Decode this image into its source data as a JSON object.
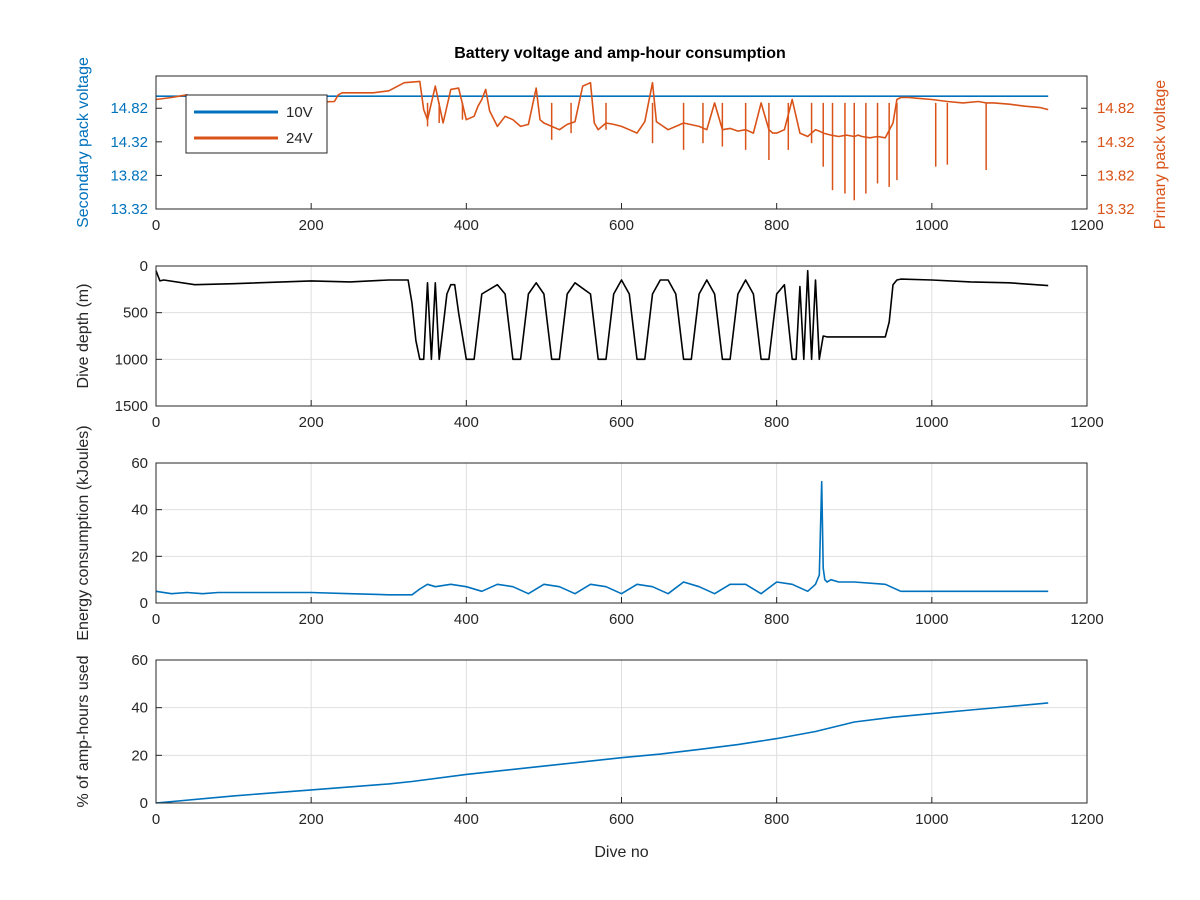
{
  "figure": {
    "title": "Battery voltage and amp-hour consumption"
  },
  "colors": {
    "blue": "#0072BD",
    "orange": "#D95319",
    "black": "#000000",
    "axis": "#262626",
    "grid": "#dfdfdf"
  },
  "chart_data": [
    {
      "type": "line",
      "title": "Battery voltage and amp-hour consumption",
      "xlabel": "",
      "ylabel": "Secondary pack voltage",
      "ylabel_right": "Primary pack voltage",
      "xlim": [
        0,
        1200
      ],
      "ylim": [
        13.32,
        15.3
      ],
      "ylim_right": [
        13.32,
        15.3
      ],
      "xticks": [
        0,
        200,
        400,
        600,
        800,
        1000,
        1200
      ],
      "yticks": [
        "13.32",
        "13.82",
        "14.32",
        "14.82"
      ],
      "yticks_right": [
        "13.32",
        "13.82",
        "14.32",
        "14.82"
      ],
      "legend": {
        "position": "top-left",
        "entries": [
          "10V",
          "24V"
        ]
      },
      "grid": false,
      "series": [
        {
          "name": "10V",
          "axis": "left",
          "x": [
            0,
            1150
          ],
          "y": [
            15.0,
            15.0
          ]
        },
        {
          "name": "24V",
          "axis": "right",
          "x": [
            0,
            20,
            40,
            60,
            80,
            100,
            140,
            180,
            230,
            235,
            240,
            280,
            300,
            320,
            340,
            345,
            350,
            360,
            370,
            380,
            390,
            400,
            410,
            415,
            420,
            425,
            430,
            440,
            450,
            460,
            470,
            480,
            490,
            495,
            500,
            510,
            520,
            530,
            540,
            550,
            560,
            565,
            570,
            580,
            590,
            600,
            610,
            620,
            630,
            640,
            645,
            650,
            660,
            680,
            700,
            710,
            720,
            730,
            740,
            750,
            760,
            770,
            780,
            790,
            795,
            800,
            810,
            820,
            830,
            840,
            850,
            855,
            860,
            870,
            880,
            890,
            900,
            905,
            910,
            920,
            930,
            940,
            950,
            955,
            960,
            970,
            980,
            1000,
            1020,
            1040,
            1060,
            1070,
            1080,
            1100,
            1120,
            1140,
            1150
          ],
          "y": [
            14.95,
            14.98,
            15.02,
            14.92,
            14.88,
            14.9,
            14.9,
            14.9,
            14.92,
            15.02,
            15.05,
            15.05,
            15.08,
            15.2,
            15.22,
            14.8,
            14.65,
            15.15,
            14.6,
            15.1,
            15.12,
            14.65,
            14.7,
            14.85,
            14.95,
            15.1,
            14.78,
            14.55,
            14.7,
            14.65,
            14.55,
            14.58,
            15.12,
            14.65,
            14.6,
            14.55,
            14.5,
            14.58,
            14.62,
            15.15,
            15.2,
            14.6,
            14.5,
            14.6,
            14.58,
            14.55,
            14.5,
            14.45,
            14.62,
            15.2,
            14.62,
            14.58,
            14.5,
            14.6,
            14.55,
            14.5,
            14.9,
            14.5,
            14.52,
            14.48,
            14.5,
            14.45,
            14.9,
            14.5,
            14.45,
            14.45,
            14.5,
            14.95,
            14.45,
            14.4,
            14.5,
            14.48,
            14.45,
            14.42,
            14.4,
            14.42,
            14.4,
            14.42,
            14.4,
            14.38,
            14.4,
            14.38,
            14.6,
            14.95,
            14.98,
            14.98,
            14.97,
            14.95,
            14.92,
            14.9,
            14.92,
            14.9,
            14.9,
            14.88,
            14.85,
            14.83,
            14.8
          ],
          "dips": [
            {
              "x": 350,
              "y": 14.55
            },
            {
              "x": 365,
              "y": 14.6
            },
            {
              "x": 395,
              "y": 14.65
            },
            {
              "x": 510,
              "y": 14.35
            },
            {
              "x": 535,
              "y": 14.45
            },
            {
              "x": 580,
              "y": 14.5
            },
            {
              "x": 640,
              "y": 14.3
            },
            {
              "x": 680,
              "y": 14.2
            },
            {
              "x": 705,
              "y": 14.3
            },
            {
              "x": 730,
              "y": 14.25
            },
            {
              "x": 760,
              "y": 14.2
            },
            {
              "x": 790,
              "y": 14.05
            },
            {
              "x": 815,
              "y": 14.2
            },
            {
              "x": 845,
              "y": 14.3
            },
            {
              "x": 860,
              "y": 13.95
            },
            {
              "x": 872,
              "y": 13.6
            },
            {
              "x": 888,
              "y": 13.55
            },
            {
              "x": 900,
              "y": 13.45
            },
            {
              "x": 915,
              "y": 13.55
            },
            {
              "x": 930,
              "y": 13.7
            },
            {
              "x": 945,
              "y": 13.65
            },
            {
              "x": 955,
              "y": 13.75
            },
            {
              "x": 1005,
              "y": 13.95
            },
            {
              "x": 1020,
              "y": 13.98
            },
            {
              "x": 1070,
              "y": 13.9
            }
          ]
        }
      ]
    },
    {
      "type": "line",
      "xlabel": "",
      "ylabel": "Dive depth (m)",
      "xlim": [
        0,
        1200
      ],
      "ylim": [
        1500,
        0
      ],
      "reversed_y": true,
      "xticks": [
        0,
        200,
        400,
        600,
        800,
        1000,
        1200
      ],
      "yticks": [
        "0",
        "500",
        "1000",
        "1500"
      ],
      "grid": true,
      "series": [
        {
          "x": [
            0,
            5,
            10,
            50,
            100,
            200,
            250,
            300,
            325,
            330,
            335,
            340,
            345,
            350,
            355,
            360,
            365,
            370,
            375,
            380,
            385,
            390,
            400,
            410,
            420,
            440,
            450,
            460,
            470,
            480,
            490,
            500,
            510,
            520,
            530,
            540,
            560,
            570,
            580,
            590,
            600,
            610,
            620,
            630,
            640,
            650,
            660,
            670,
            680,
            690,
            700,
            710,
            720,
            730,
            740,
            750,
            760,
            770,
            780,
            790,
            800,
            810,
            820,
            825,
            830,
            835,
            840,
            845,
            850,
            855,
            860,
            865,
            870,
            880,
            900,
            920,
            940,
            945,
            950,
            955,
            960,
            1000,
            1050,
            1100,
            1150
          ],
          "y": [
            50,
            160,
            150,
            200,
            190,
            160,
            170,
            150,
            150,
            400,
            800,
            1000,
            1000,
            180,
            1000,
            180,
            1000,
            650,
            300,
            200,
            200,
            500,
            1000,
            1000,
            300,
            200,
            300,
            1000,
            1000,
            300,
            180,
            300,
            1000,
            1000,
            300,
            180,
            300,
            1000,
            1000,
            300,
            150,
            300,
            1000,
            1000,
            300,
            150,
            150,
            300,
            1000,
            1000,
            300,
            150,
            300,
            1000,
            1000,
            300,
            150,
            300,
            1000,
            1000,
            300,
            200,
            1000,
            1000,
            220,
            1000,
            50,
            1000,
            150,
            1000,
            750,
            760,
            760,
            760,
            760,
            760,
            760,
            600,
            200,
            150,
            140,
            150,
            170,
            180,
            210
          ]
        }
      ]
    },
    {
      "type": "line",
      "xlabel": "",
      "ylabel": "Energy consumption (kJoules)",
      "xlim": [
        0,
        1200
      ],
      "ylim": [
        0,
        60
      ],
      "xticks": [
        0,
        200,
        400,
        600,
        800,
        1000,
        1200
      ],
      "yticks": [
        "0",
        "20",
        "40",
        "60"
      ],
      "grid": true,
      "series": [
        {
          "x": [
            0,
            20,
            40,
            60,
            80,
            100,
            150,
            200,
            250,
            300,
            330,
            340,
            350,
            360,
            380,
            400,
            420,
            440,
            460,
            480,
            500,
            520,
            540,
            560,
            580,
            600,
            620,
            640,
            660,
            680,
            700,
            720,
            740,
            760,
            780,
            800,
            820,
            840,
            850,
            855,
            858,
            860,
            862,
            865,
            870,
            880,
            900,
            940,
            960,
            980,
            1000,
            1050,
            1100,
            1150
          ],
          "y": [
            5,
            4,
            4.5,
            4,
            4.5,
            4.5,
            4.5,
            4.5,
            4,
            3.5,
            3.5,
            6,
            8,
            7,
            8,
            7,
            5,
            8,
            7,
            4,
            8,
            7,
            4,
            8,
            7,
            4,
            8,
            7,
            4,
            9,
            7,
            4,
            8,
            8,
            4,
            9,
            8,
            5,
            8,
            12,
            52,
            15,
            10,
            9,
            10,
            9,
            9,
            8,
            5,
            5,
            5,
            5,
            5,
            5
          ]
        }
      ]
    },
    {
      "type": "line",
      "xlabel": "Dive no",
      "ylabel": "% of amp-hours used",
      "xlim": [
        0,
        1200
      ],
      "ylim": [
        0,
        60
      ],
      "xticks": [
        0,
        200,
        400,
        600,
        800,
        1000,
        1200
      ],
      "yticks": [
        "0",
        "20",
        "40",
        "60"
      ],
      "grid": true,
      "series": [
        {
          "x": [
            0,
            100,
            200,
            300,
            330,
            400,
            500,
            600,
            650,
            700,
            750,
            800,
            850,
            900,
            950,
            1000,
            1050,
            1100,
            1150
          ],
          "y": [
            0,
            3,
            5.5,
            8,
            9,
            12,
            15.5,
            19,
            20.5,
            22.5,
            24.5,
            27,
            30,
            34,
            36,
            37.5,
            39,
            40.5,
            42
          ]
        }
      ]
    }
  ]
}
